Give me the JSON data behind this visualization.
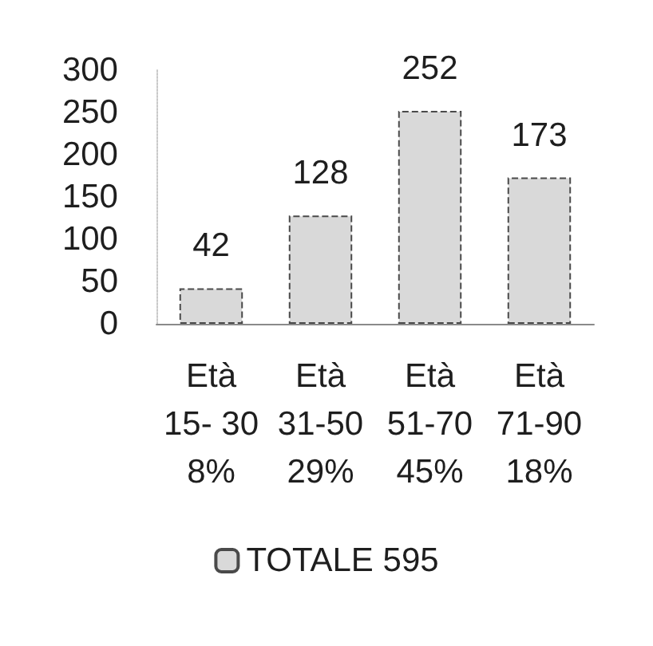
{
  "chart_data": {
    "type": "bar",
    "categories": [
      "Età\n15- 30\n8%",
      "Età\n31-50\n29%",
      "Età\n51-70\n45%",
      "Età\n71-90\n18%"
    ],
    "series": [
      {
        "name": "TOTALE 595",
        "color": "#d9d9d9",
        "values": [
          42,
          128,
          252,
          173
        ]
      }
    ],
    "ylim": [
      0,
      300
    ],
    "yticks": [
      0,
      50,
      100,
      150,
      200,
      250,
      300
    ],
    "data_labels": true,
    "legend": "bottom",
    "grid": false
  }
}
